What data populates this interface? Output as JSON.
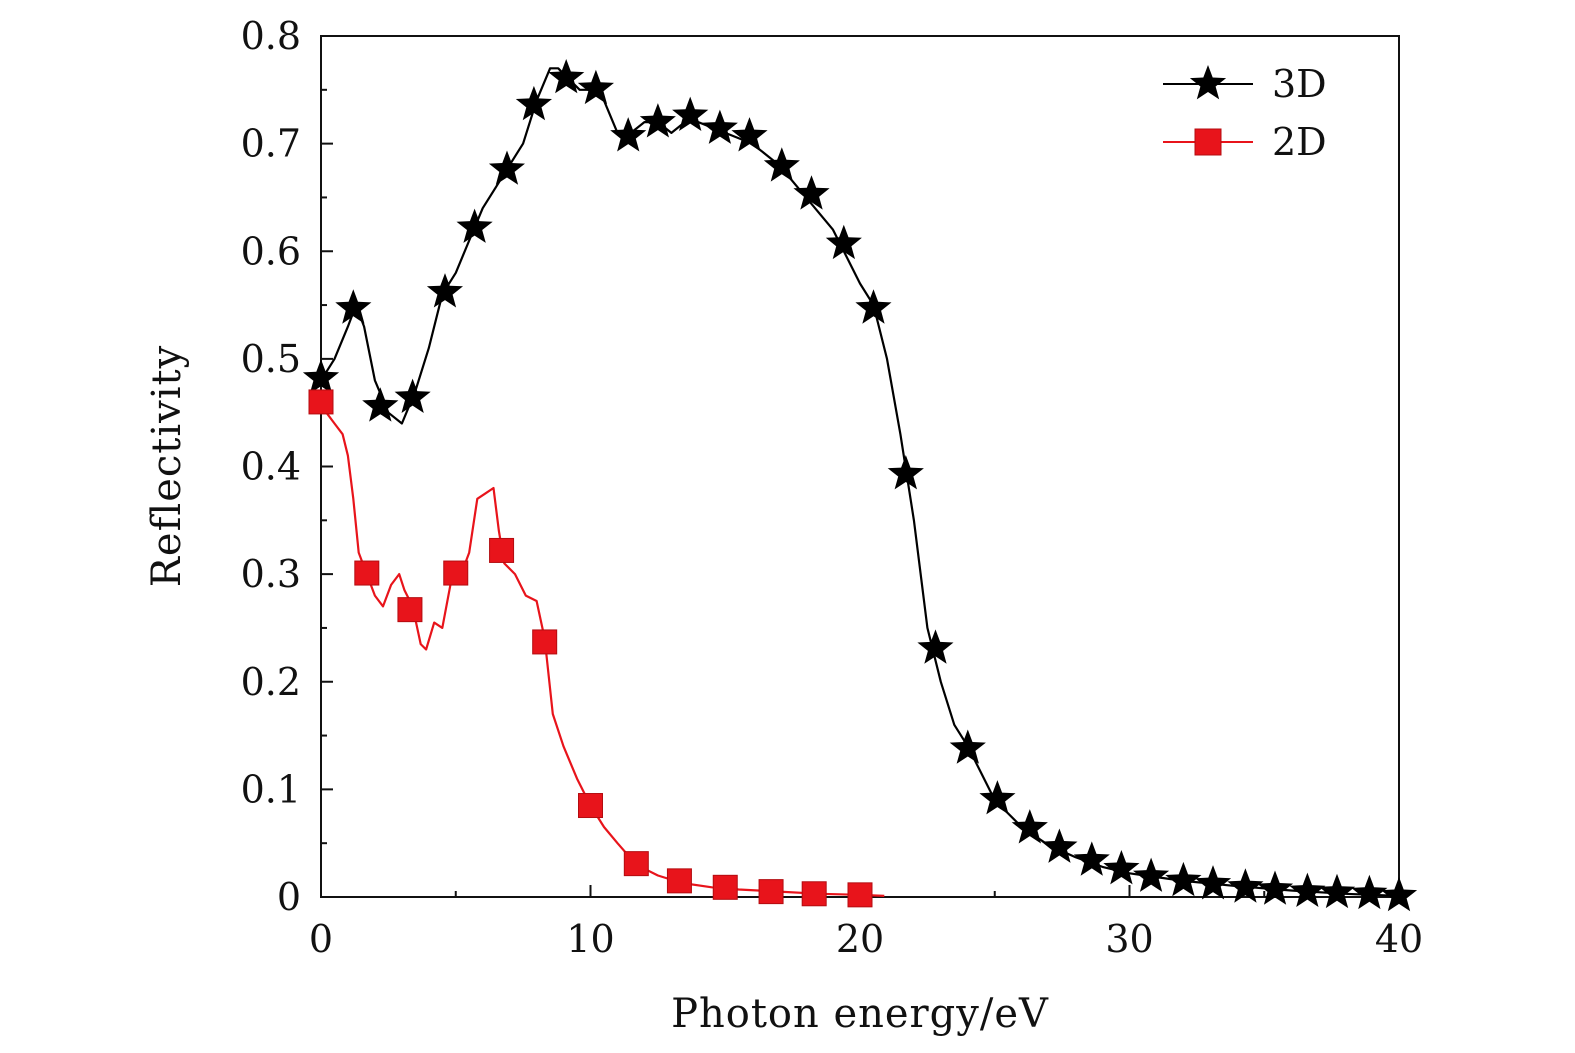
{
  "chart_data": {
    "type": "line",
    "title": "",
    "xlabel": "Photon energy/eV",
    "ylabel": "Reflectivity",
    "xlim": [
      0,
      40
    ],
    "ylim": [
      0,
      0.8
    ],
    "xticks": [
      0,
      10,
      20,
      30,
      40
    ],
    "xtick_labels": [
      "0",
      "10",
      "20",
      "30",
      "40"
    ],
    "yticks": [
      0,
      0.1,
      0.2,
      0.3,
      0.4,
      0.5,
      0.6,
      0.7,
      0.8
    ],
    "ytick_labels": [
      "0",
      "0.1",
      "0.2",
      "0.3",
      "0.4",
      "0.5",
      "0.6",
      "0.7",
      "0.8"
    ],
    "grid": false,
    "legend_position": "top-right",
    "series": [
      {
        "name": "3D",
        "color": "#000000",
        "marker": "star",
        "line": [
          [
            0,
            0.48
          ],
          [
            0.5,
            0.5
          ],
          [
            1.0,
            0.53
          ],
          [
            1.3,
            0.55
          ],
          [
            1.6,
            0.53
          ],
          [
            2.0,
            0.48
          ],
          [
            2.5,
            0.45
          ],
          [
            3.0,
            0.44
          ],
          [
            3.5,
            0.47
          ],
          [
            4.0,
            0.51
          ],
          [
            4.5,
            0.56
          ],
          [
            5.0,
            0.58
          ],
          [
            5.5,
            0.61
          ],
          [
            6.0,
            0.64
          ],
          [
            6.5,
            0.66
          ],
          [
            7.0,
            0.68
          ],
          [
            7.5,
            0.7
          ],
          [
            8.0,
            0.74
          ],
          [
            8.5,
            0.77
          ],
          [
            8.8,
            0.77
          ],
          [
            9.2,
            0.76
          ],
          [
            9.6,
            0.75
          ],
          [
            10.0,
            0.75
          ],
          [
            10.5,
            0.74
          ],
          [
            11.0,
            0.71
          ],
          [
            11.5,
            0.71
          ],
          [
            12.0,
            0.72
          ],
          [
            12.5,
            0.72
          ],
          [
            13.0,
            0.71
          ],
          [
            13.5,
            0.72
          ],
          [
            14.0,
            0.72
          ],
          [
            15.0,
            0.71
          ],
          [
            16.0,
            0.7
          ],
          [
            17.0,
            0.68
          ],
          [
            18.0,
            0.65
          ],
          [
            19.0,
            0.62
          ],
          [
            20.0,
            0.57
          ],
          [
            20.5,
            0.55
          ],
          [
            21.0,
            0.5
          ],
          [
            21.5,
            0.43
          ],
          [
            22.0,
            0.35
          ],
          [
            22.5,
            0.25
          ],
          [
            23.0,
            0.2
          ],
          [
            23.5,
            0.16
          ],
          [
            24.0,
            0.14
          ],
          [
            25.0,
            0.09
          ],
          [
            26.0,
            0.065
          ],
          [
            27.0,
            0.048
          ],
          [
            28.0,
            0.037
          ],
          [
            29.0,
            0.028
          ],
          [
            30.0,
            0.022
          ],
          [
            32.0,
            0.015
          ],
          [
            34.0,
            0.01
          ],
          [
            36.0,
            0.006
          ],
          [
            38.0,
            0.003
          ],
          [
            40.0,
            0.001
          ]
        ],
        "markers": [
          [
            0,
            0.482
          ],
          [
            1.2,
            0.547
          ],
          [
            2.2,
            0.456
          ],
          [
            3.4,
            0.464
          ],
          [
            4.6,
            0.562
          ],
          [
            5.7,
            0.622
          ],
          [
            6.9,
            0.676
          ],
          [
            7.9,
            0.736
          ],
          [
            9.1,
            0.761
          ],
          [
            10.2,
            0.751
          ],
          [
            11.4,
            0.707
          ],
          [
            12.5,
            0.72
          ],
          [
            13.7,
            0.726
          ],
          [
            14.8,
            0.714
          ],
          [
            15.9,
            0.707
          ],
          [
            17.1,
            0.679
          ],
          [
            18.2,
            0.653
          ],
          [
            19.4,
            0.607
          ],
          [
            20.5,
            0.547
          ],
          [
            21.7,
            0.393
          ],
          [
            22.8,
            0.231
          ],
          [
            24.0,
            0.138
          ],
          [
            25.1,
            0.091
          ],
          [
            26.3,
            0.064
          ],
          [
            27.4,
            0.046
          ],
          [
            28.6,
            0.034
          ],
          [
            29.7,
            0.026
          ],
          [
            30.8,
            0.019
          ],
          [
            32.0,
            0.015
          ],
          [
            33.1,
            0.012
          ],
          [
            34.3,
            0.009
          ],
          [
            35.4,
            0.007
          ],
          [
            36.6,
            0.005
          ],
          [
            37.7,
            0.004
          ],
          [
            38.9,
            0.003
          ],
          [
            40.0,
            0.001
          ]
        ]
      },
      {
        "name": "2D",
        "color": "#e8141b",
        "marker": "square",
        "line": [
          [
            0,
            0.46
          ],
          [
            0.2,
            0.45
          ],
          [
            0.5,
            0.44
          ],
          [
            0.8,
            0.43
          ],
          [
            1.0,
            0.41
          ],
          [
            1.2,
            0.37
          ],
          [
            1.4,
            0.32
          ],
          [
            1.7,
            0.3
          ],
          [
            2.0,
            0.28
          ],
          [
            2.3,
            0.27
          ],
          [
            2.6,
            0.29
          ],
          [
            2.9,
            0.3
          ],
          [
            3.1,
            0.285
          ],
          [
            3.4,
            0.27
          ],
          [
            3.7,
            0.235
          ],
          [
            3.9,
            0.23
          ],
          [
            4.2,
            0.255
          ],
          [
            4.5,
            0.25
          ],
          [
            4.8,
            0.29
          ],
          [
            5.2,
            0.3
          ],
          [
            5.5,
            0.32
          ],
          [
            5.8,
            0.37
          ],
          [
            6.1,
            0.375
          ],
          [
            6.4,
            0.38
          ],
          [
            6.6,
            0.34
          ],
          [
            6.8,
            0.31
          ],
          [
            7.2,
            0.3
          ],
          [
            7.6,
            0.28
          ],
          [
            8.0,
            0.275
          ],
          [
            8.3,
            0.24
          ],
          [
            8.6,
            0.17
          ],
          [
            9.0,
            0.14
          ],
          [
            9.5,
            0.11
          ],
          [
            10.0,
            0.085
          ],
          [
            10.5,
            0.065
          ],
          [
            11.0,
            0.05
          ],
          [
            11.7,
            0.03
          ],
          [
            12.5,
            0.02
          ],
          [
            13.4,
            0.013
          ],
          [
            14.5,
            0.009
          ],
          [
            15.5,
            0.007
          ],
          [
            17.0,
            0.005
          ],
          [
            18.5,
            0.003
          ],
          [
            20.0,
            0.002
          ],
          [
            20.9,
            0.001
          ]
        ],
        "markers": [
          [
            0,
            0.46
          ],
          [
            1.7,
            0.301
          ],
          [
            3.3,
            0.267
          ],
          [
            5.0,
            0.301
          ],
          [
            6.7,
            0.322
          ],
          [
            8.3,
            0.237
          ],
          [
            10.0,
            0.085
          ],
          [
            11.7,
            0.031
          ],
          [
            13.3,
            0.015
          ],
          [
            15.0,
            0.009
          ],
          [
            16.7,
            0.005
          ],
          [
            18.3,
            0.003
          ],
          [
            20.0,
            0.002
          ]
        ]
      }
    ]
  }
}
